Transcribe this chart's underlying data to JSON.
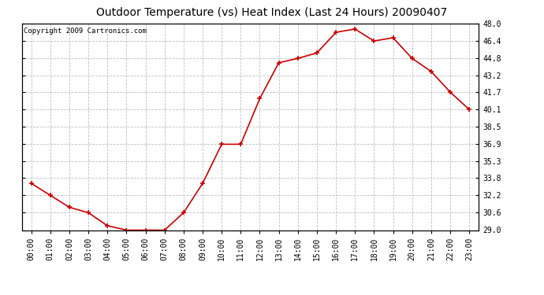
{
  "title": "Outdoor Temperature (vs) Heat Index (Last 24 Hours) 20090407",
  "copyright": "Copyright 2009 Cartronics.com",
  "x_labels": [
    "00:00",
    "01:00",
    "02:00",
    "03:00",
    "04:00",
    "05:00",
    "06:00",
    "07:00",
    "08:00",
    "09:00",
    "10:00",
    "11:00",
    "12:00",
    "13:00",
    "14:00",
    "15:00",
    "16:00",
    "17:00",
    "18:00",
    "19:00",
    "20:00",
    "21:00",
    "22:00",
    "23:00"
  ],
  "y_values": [
    33.3,
    32.2,
    31.1,
    30.6,
    29.4,
    29.0,
    29.0,
    29.0,
    30.6,
    33.3,
    36.9,
    36.9,
    41.1,
    44.4,
    44.8,
    45.3,
    47.2,
    47.5,
    46.4,
    46.7,
    44.8,
    43.6,
    41.7,
    40.1
  ],
  "line_color": "#cc0000",
  "marker": "+",
  "background_color": "#ffffff",
  "plot_bg_color": "#ffffff",
  "grid_color": "#c0c0c0",
  "ylim": [
    29.0,
    48.0
  ],
  "yticks": [
    29.0,
    30.6,
    32.2,
    33.8,
    35.3,
    36.9,
    38.5,
    40.1,
    41.7,
    43.2,
    44.8,
    46.4,
    48.0
  ],
  "title_fontsize": 10,
  "copyright_fontsize": 6.5,
  "tick_fontsize": 7
}
